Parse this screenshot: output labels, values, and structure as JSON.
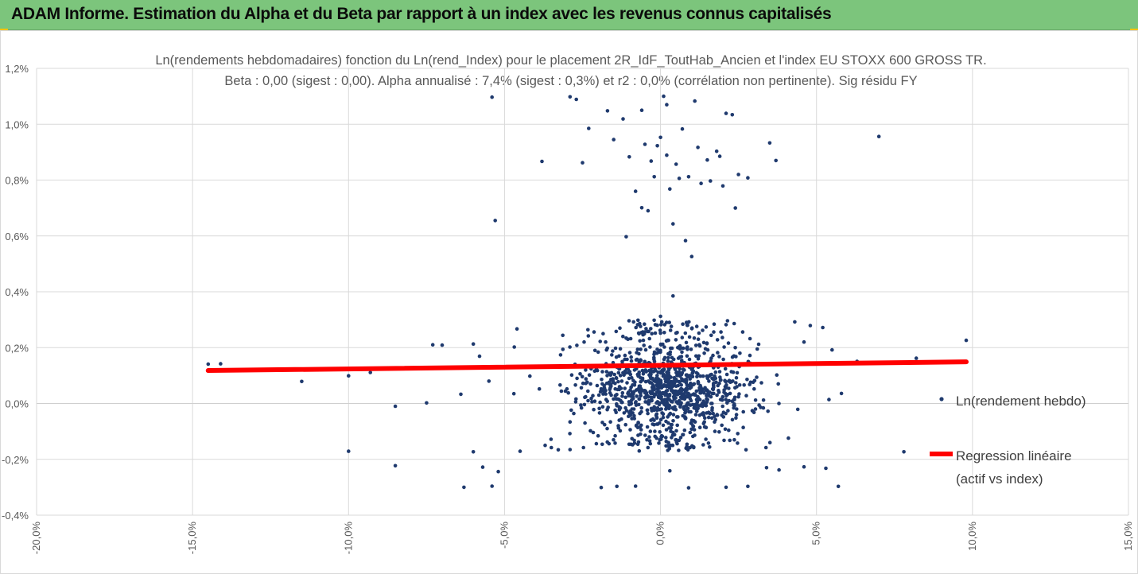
{
  "banner": {
    "title": "ADAM Informe. Estimation du Alpha et du Beta par rapport à un index avec les revenus connus capitalisés"
  },
  "colors": {
    "banner_bg": "#7cc57c",
    "points": "#1f3a6e",
    "regression": "#ff0000",
    "grid": "#d9d9d9"
  },
  "chart_data": {
    "type": "scatter",
    "title_line1": "Ln(rendements hebdomadaires) fonction du Ln(rend_Index) pour le placement 2R_IdF_ToutHab_Ancien et l'index EU STOXX 600 GROSS TR.",
    "title_line2": "Beta : 0,00 (sigest : 0,00). Alpha annualisé : 7,4% (sigest : 0,3%) et r2 : 0,0% (corrélation non pertinente). Sig résidu FY",
    "xlabel": "",
    "ylabel": "",
    "xlim": [
      -0.2,
      0.15
    ],
    "ylim": [
      -0.004,
      0.012
    ],
    "x_ticks": [
      -0.2,
      -0.15,
      -0.1,
      -0.05,
      0.0,
      0.05,
      0.1,
      0.15
    ],
    "x_tick_labels": [
      "-20,0%",
      "-15,0%",
      "-10,0%",
      "-5,0%",
      "0,0%",
      "5,0%",
      "10,0%",
      "15,0%"
    ],
    "y_ticks": [
      -0.004,
      -0.002,
      0.0,
      0.002,
      0.004,
      0.006,
      0.008,
      0.01,
      0.012
    ],
    "y_tick_labels": [
      "-0,4%",
      "-0,2%",
      "0,0%",
      "0,2%",
      "0,4%",
      "0,6%",
      "0,8%",
      "1,0%",
      "1,2%"
    ],
    "grid": true,
    "legend_position": "right",
    "series": [
      {
        "name": "Ln(rendement hebdo)",
        "kind": "scatter",
        "points": [
          [
            -0.145,
            0.00141
          ],
          [
            -0.141,
            0.00142
          ],
          [
            -0.115,
            0.00079
          ],
          [
            -0.1,
            0.00099
          ],
          [
            -0.1,
            -0.00171
          ],
          [
            -0.093,
            0.00111
          ],
          [
            -0.085,
            -0.0001
          ],
          [
            -0.085,
            -0.00223
          ],
          [
            -0.075,
            2e-05
          ],
          [
            -0.073,
            0.0021
          ],
          [
            -0.07,
            0.00209
          ],
          [
            -0.064,
            0.00033
          ],
          [
            -0.063,
            -0.003
          ],
          [
            -0.06,
            0.00213
          ],
          [
            -0.06,
            -0.00173
          ],
          [
            -0.058,
            0.00169
          ],
          [
            -0.057,
            -0.00228
          ],
          [
            -0.055,
            0.0008
          ],
          [
            -0.054,
            -0.00296
          ],
          [
            -0.052,
            -0.00244
          ],
          [
            -0.054,
            0.01097
          ],
          [
            -0.053,
            0.00655
          ],
          [
            -0.038,
            0.00867
          ],
          [
            -0.029,
            0.01098
          ],
          [
            -0.027,
            0.01089
          ],
          [
            -0.025,
            0.00862
          ],
          [
            -0.023,
            0.00985
          ],
          [
            -0.017,
            0.01048
          ],
          [
            -0.015,
            0.00945
          ],
          [
            -0.012,
            0.01019
          ],
          [
            -0.011,
            0.00597
          ],
          [
            -0.01,
            0.00883
          ],
          [
            -0.008,
            0.0076
          ],
          [
            -0.006,
            0.0105
          ],
          [
            -0.005,
            0.00928
          ],
          [
            -0.003,
            0.00868
          ],
          [
            -0.002,
            0.00812
          ],
          [
            -0.001,
            0.00923
          ],
          [
            0.0,
            0.00953
          ],
          [
            0.001,
            0.011
          ],
          [
            0.002,
            0.0107
          ],
          [
            0.002,
            0.00889
          ],
          [
            0.003,
            0.00768
          ],
          [
            0.004,
            0.00643
          ],
          [
            0.005,
            0.00857
          ],
          [
            0.006,
            0.00806
          ],
          [
            0.007,
            0.00983
          ],
          [
            0.008,
            0.00583
          ],
          [
            0.009,
            0.00812
          ],
          [
            0.01,
            0.00526
          ],
          [
            0.011,
            0.01083
          ],
          [
            0.012,
            0.00917
          ],
          [
            0.013,
            0.00788
          ],
          [
            0.015,
            0.00872
          ],
          [
            0.016,
            0.00797
          ],
          [
            0.018,
            0.00903
          ],
          [
            0.019,
            0.00885
          ],
          [
            0.02,
            0.00779
          ],
          [
            0.021,
            0.01039
          ],
          [
            0.023,
            0.01034
          ],
          [
            0.024,
            0.007
          ],
          [
            0.025,
            0.0082
          ],
          [
            0.028,
            0.00808
          ],
          [
            0.035,
            0.00933
          ],
          [
            0.037,
            0.0087
          ],
          [
            0.07,
            0.00956
          ],
          [
            0.004,
            0.00385
          ],
          [
            0.0,
            0.00312
          ],
          [
            -0.004,
            0.0069
          ],
          [
            -0.006,
            0.00701
          ],
          [
            0.046,
            0.0022
          ],
          [
            0.048,
            0.00279
          ],
          [
            0.052,
            0.00272
          ],
          [
            0.055,
            0.00192
          ],
          [
            0.057,
            -0.00297
          ],
          [
            0.053,
            -0.00232
          ],
          [
            0.054,
            0.00014
          ],
          [
            0.058,
            0.00036
          ],
          [
            0.063,
            0.00151
          ],
          [
            0.078,
            -0.00173
          ],
          [
            0.082,
            0.00162
          ],
          [
            0.098,
            0.00226
          ],
          [
            0.044,
            -0.00021
          ],
          [
            0.046,
            -0.00227
          ],
          [
            0.041,
            -0.00124
          ],
          [
            0.038,
            -0.00238
          ],
          [
            0.034,
            -0.0023
          ],
          [
            0.031,
            0.00195
          ],
          [
            0.028,
            -0.00297
          ],
          [
            0.021,
            -0.003
          ],
          [
            0.009,
            -0.00302
          ],
          [
            0.003,
            -0.00241
          ],
          [
            -0.008,
            -0.00296
          ],
          [
            -0.014,
            -0.00297
          ],
          [
            -0.019,
            -0.00301
          ],
          [
            -0.029,
            -0.00165
          ],
          [
            -0.035,
            -0.00158
          ],
          [
            -0.045,
            -0.00171
          ],
          [
            -0.046,
            0.00267
          ],
          [
            -0.047,
            0.00035
          ],
          [
            0.03,
            0.00052
          ],
          [
            -0.03,
            0.00052
          ]
        ],
        "cluster": {
          "count": 1150,
          "x_center": 0.002,
          "x_spread": 0.013,
          "y_range": [
            -0.0017,
            0.003
          ],
          "y_mode": 0.0005
        }
      },
      {
        "name": "Regression linéaire\n(actif vs index)",
        "kind": "line",
        "x": [
          -0.145,
          0.098
        ],
        "y": [
          0.00118,
          0.00149
        ]
      }
    ],
    "legend": {
      "scatter_label": "Ln(rendement hebdo)",
      "line_label_1": "Regression linéaire",
      "line_label_2": "(actif vs index)"
    }
  }
}
